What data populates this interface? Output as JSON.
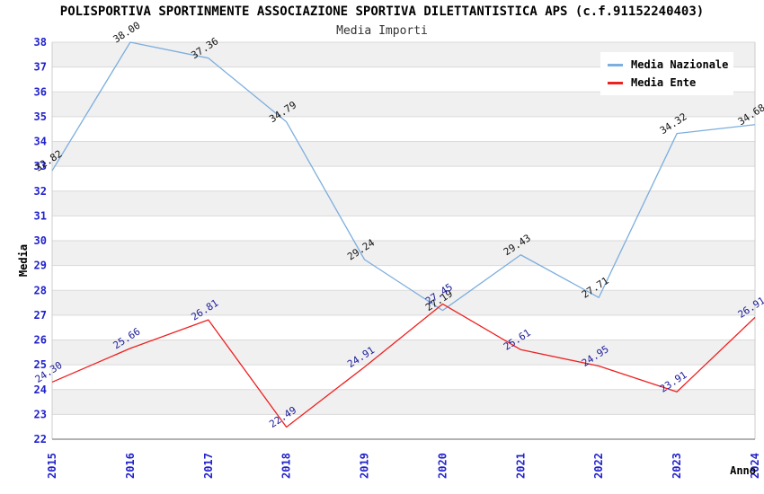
{
  "chart_data": {
    "type": "line",
    "title": "POLISPORTIVA SPORTINMENTE ASSOCIAZIONE SPORTIVA DILETTANTISTICA APS (c.f.91152240403)",
    "subtitle": "Media Importi",
    "xlabel": "Anno",
    "ylabel": "Media",
    "x": [
      2015,
      2016,
      2017,
      2018,
      2019,
      2020,
      2021,
      2022,
      2023,
      2024
    ],
    "ylim": [
      22,
      38
    ],
    "ytick_step": 1,
    "grid": true,
    "legend_position": "top-right",
    "series": [
      {
        "name": "Media Nazionale",
        "color": "#7caede",
        "label_color": "#111111",
        "values": [
          32.82,
          38.0,
          37.36,
          34.79,
          29.24,
          27.19,
          29.43,
          27.71,
          34.32,
          34.68
        ]
      },
      {
        "name": "Media Ente",
        "color": "#ee2020",
        "label_color": "#1a1a99",
        "values": [
          24.3,
          25.66,
          26.81,
          22.49,
          24.91,
          27.45,
          25.61,
          24.95,
          23.91,
          26.91
        ]
      }
    ],
    "colors": {
      "axis_text": "#2222cc",
      "band_fill": "#f0f0f0",
      "band_alt_fill": "#ffffff",
      "gridline": "#dadada",
      "axis_line": "#999999",
      "plot_border": "#cccccc",
      "title_text": "#000000",
      "subtitle_text": "#333333"
    }
  }
}
